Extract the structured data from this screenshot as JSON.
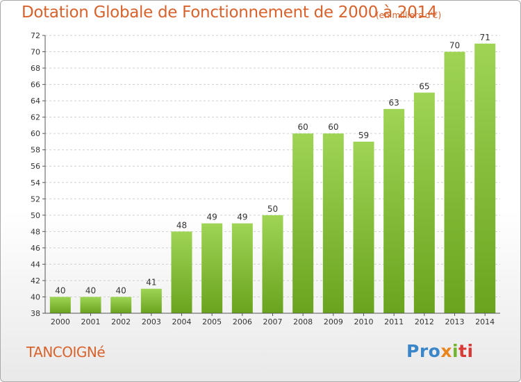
{
  "chart_data": {
    "type": "bar",
    "title": "Dotation Globale de Fonctionnement de 2000 à 2014",
    "subtitle": "(en milliers d'€)",
    "categories": [
      "2000",
      "2001",
      "2002",
      "2003",
      "2004",
      "2005",
      "2006",
      "2007",
      "2008",
      "2009",
      "2010",
      "2011",
      "2012",
      "2013",
      "2014"
    ],
    "values": [
      40,
      40,
      40,
      41,
      48,
      49,
      49,
      50,
      60,
      60,
      59,
      63,
      65,
      70,
      71
    ],
    "ylim": [
      38,
      72
    ],
    "yticks": [
      38,
      40,
      42,
      44,
      46,
      48,
      50,
      52,
      54,
      56,
      58,
      60,
      62,
      64,
      66,
      68,
      70,
      72
    ],
    "xlabel": "",
    "ylabel": "",
    "grid": "horizontal dashed",
    "legend": "none",
    "colors": {
      "bar_top": "#9fd455",
      "bar_bottom": "#6aa41e",
      "title": "#d8622c"
    }
  },
  "commune": "TANCOIGNé",
  "logo": {
    "part1": "Pro",
    "part2": "x",
    "part3": "i",
    "part4": "ti"
  }
}
